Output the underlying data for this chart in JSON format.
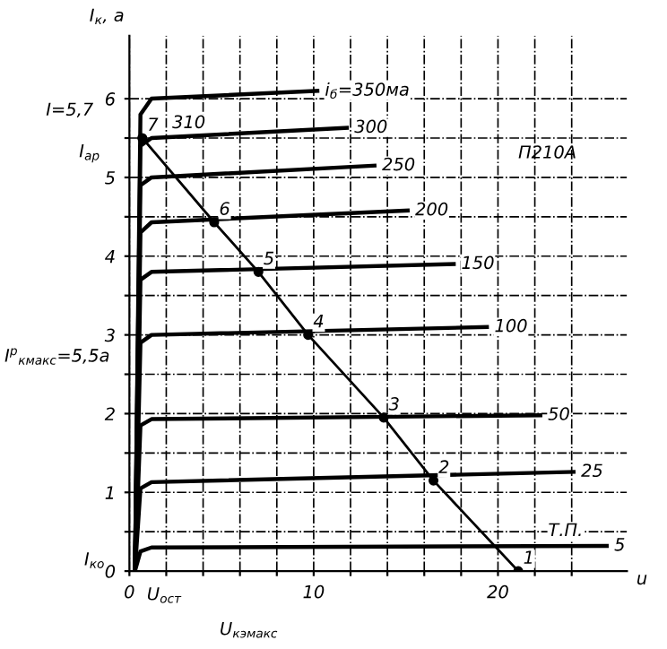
{
  "chart_data": {
    "type": "line",
    "ylabel": "I$_{к}$, а",
    "xlabel": "u",
    "xlim": [
      0,
      27
    ],
    "ylim": [
      0,
      6.8
    ],
    "xticks": [
      0,
      {
        "value": 2,
        "label": null
      },
      {
        "value": 4,
        "label": null
      },
      {
        "value": 6,
        "label": null
      },
      {
        "value": 8,
        "label": null
      },
      10,
      {
        "value": 12,
        "label": null
      },
      {
        "value": 14,
        "label": null
      },
      {
        "value": 16,
        "label": null
      },
      {
        "value": 18,
        "label": null
      },
      20,
      {
        "value": 22,
        "label": null
      },
      {
        "value": 24,
        "label": null
      }
    ],
    "yticks": [
      0,
      {
        "value": 0.5,
        "label": null
      },
      1,
      {
        "value": 1.5,
        "label": null
      },
      2,
      {
        "value": 2.5,
        "label": null
      },
      3,
      {
        "value": 3.5,
        "label": null
      },
      4,
      {
        "value": 4.5,
        "label": null
      },
      5,
      {
        "value": 5.5,
        "label": null
      },
      6
    ],
    "grid": true,
    "legend": false,
    "series": [
      {
        "name": "i$_{б}$=350ма",
        "color": "#000000",
        "x": [
          0.3,
          0.6,
          1.2,
          10.2
        ],
        "values": [
          0,
          5.8,
          6.0,
          6.1
        ]
      },
      {
        "name": "300",
        "color": "#000000",
        "x": [
          0.3,
          0.6,
          1.2,
          11.8
        ],
        "values": [
          0,
          5.4,
          5.5,
          5.63
        ]
      },
      {
        "name": "250",
        "color": "#000000",
        "x": [
          0.3,
          0.6,
          1.2,
          13.3
        ],
        "values": [
          0,
          4.9,
          5.0,
          5.15
        ]
      },
      {
        "name": "200",
        "color": "#000000",
        "x": [
          0.3,
          0.6,
          1.2,
          15.1
        ],
        "values": [
          0,
          4.3,
          4.43,
          4.58
        ]
      },
      {
        "name": "150",
        "color": "#000000",
        "x": [
          0.3,
          0.6,
          1.2,
          17.6
        ],
        "values": [
          0,
          3.7,
          3.8,
          3.9
        ]
      },
      {
        "name": "100",
        "color": "#000000",
        "x": [
          0.3,
          0.6,
          1.2,
          19.4
        ],
        "values": [
          0,
          2.9,
          3.0,
          3.1
        ]
      },
      {
        "name": "50",
        "color": "#000000",
        "x": [
          0.3,
          0.6,
          1.2,
          22.3
        ],
        "values": [
          0,
          1.85,
          1.93,
          1.98
        ]
      },
      {
        "name": "25",
        "color": "#000000",
        "x": [
          0.3,
          0.6,
          1.2,
          24.1
        ],
        "values": [
          0,
          1.05,
          1.13,
          1.26
        ]
      },
      {
        "name": "5",
        "color": "#000000",
        "x": [
          0.3,
          0.6,
          1.2,
          25.9
        ],
        "values": [
          0,
          0.25,
          0.3,
          0.32
        ]
      },
      {
        "color": "#000000",
        "marker": "circle",
        "x": [
          0.7,
          4.6,
          7.0,
          9.7,
          13.8,
          16.5,
          21.1
        ],
        "values": [
          5.5,
          4.43,
          3.8,
          3.0,
          1.95,
          1.15,
          0
        ]
      }
    ],
    "annotations": [
      {
        "text": "7",
        "x": 0.7,
        "y": 5.5
      },
      {
        "text": "6",
        "x": 4.6,
        "y": 4.43
      },
      {
        "text": "5",
        "x": 7.0,
        "y": 3.8
      },
      {
        "text": "4",
        "x": 9.7,
        "y": 3.0
      },
      {
        "text": "3",
        "x": 13.8,
        "y": 1.95
      },
      {
        "text": "2",
        "x": 16.5,
        "y": 1.15
      },
      {
        "text": "1",
        "x": 21.1,
        "y": 0
      },
      {
        "text": "310",
        "x": 0.7,
        "y": 5.5
      },
      {
        "text": "Т.П.",
        "x": 21.1,
        "y": 0.32
      },
      "П210А",
      "I=5,7",
      "I$_{ар}$",
      "I$^{р}$$_{кмакс}$=5,5а",
      "I$_{ко}$",
      "U$_{ост}$",
      "U$_{кэмакс}$"
    ]
  }
}
